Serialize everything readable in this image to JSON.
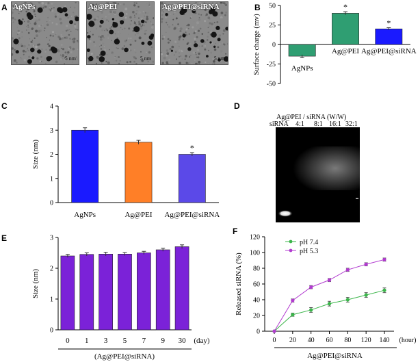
{
  "panel_labels": {
    "A": "A",
    "B": "B",
    "C": "C",
    "D": "D",
    "E": "E",
    "F": "F"
  },
  "tem_images": [
    {
      "label": "AgNPs",
      "scale": "5 nm"
    },
    {
      "label": "Ag@PEI",
      "scale": "5 nm"
    },
    {
      "label": "Ag@PEI@siRNA",
      "scale": "5 nm"
    }
  ],
  "gel": {
    "title": "Ag@PEI / siRNA (W/W)",
    "lanes": [
      "siRNA",
      "4:1",
      "8:1",
      "16:1",
      "32:1"
    ]
  },
  "colors": {
    "blue": "#1a1aff",
    "green": "#2f9e72",
    "orange": "#ff7f27",
    "violet": "#5b49e8",
    "purple": "#7b22d8",
    "green_line": "#3bb54a",
    "magenta_line": "#b23bd0"
  },
  "chart_data": [
    {
      "id": "B",
      "type": "bar",
      "categories": [
        "AgNPs",
        "Ag@PEI",
        "Ag@PEI@siRNA"
      ],
      "values": [
        -15,
        40,
        20
      ],
      "errors": [
        2,
        2,
        1.5
      ],
      "significance": [
        "",
        "*",
        "*"
      ],
      "ylabel": "Surface charge (mv)",
      "ylim": [
        -50,
        50
      ],
      "yticks": [
        -50,
        -25,
        0,
        25,
        50
      ],
      "colors": [
        "#2f9e72",
        "#2f9e72",
        "#1a1aff"
      ]
    },
    {
      "id": "C",
      "type": "bar",
      "categories": [
        "AgNPs",
        "Ag@PEI",
        "Ag@PEI@siRNA"
      ],
      "values": [
        3.0,
        2.5,
        2.0
      ],
      "errors": [
        0.1,
        0.08,
        0.07
      ],
      "significance": [
        "",
        "",
        "*"
      ],
      "ylabel": "Size (nm)",
      "ylim": [
        0,
        4
      ],
      "yticks": [
        0,
        1,
        2,
        3,
        4
      ],
      "colors": [
        "#1a1aff",
        "#ff7f27",
        "#5b49e8"
      ]
    },
    {
      "id": "E",
      "type": "bar",
      "categories": [
        "0",
        "1",
        "3",
        "5",
        "7",
        "9",
        "30"
      ],
      "values": [
        2.4,
        2.45,
        2.46,
        2.46,
        2.5,
        2.6,
        2.7
      ],
      "errors": [
        0.05,
        0.05,
        0.06,
        0.05,
        0.05,
        0.05,
        0.06
      ],
      "xunit": "(day)",
      "xlabel": "(Ag@PEI@siRNA)",
      "ylabel": "Size (nm)",
      "ylim": [
        0,
        3
      ],
      "yticks": [
        0,
        1,
        2,
        3
      ],
      "color": "#7b22d8"
    },
    {
      "id": "F",
      "type": "line",
      "x": [
        0,
        20,
        40,
        60,
        80,
        120,
        140
      ],
      "xunit": "(hour)",
      "xlabel": "Ag@PEI@siRNA",
      "ylabel": "Released siRNA (%)",
      "ylim": [
        0,
        120
      ],
      "yticks": [
        0,
        20,
        40,
        60,
        80,
        100,
        120
      ],
      "series": [
        {
          "name": "pH 7.4",
          "values": [
            0,
            21,
            27,
            35,
            40,
            46,
            52
          ],
          "errors": [
            0,
            2,
            3,
            3,
            3,
            3,
            3
          ],
          "color": "#3bb54a"
        },
        {
          "name": "pH 5.3",
          "values": [
            0,
            39,
            56,
            65,
            78,
            85,
            91
          ],
          "errors": [
            0,
            2,
            2,
            2,
            2,
            2,
            2
          ],
          "color": "#b23bd0"
        }
      ],
      "legend": "top-left"
    }
  ]
}
